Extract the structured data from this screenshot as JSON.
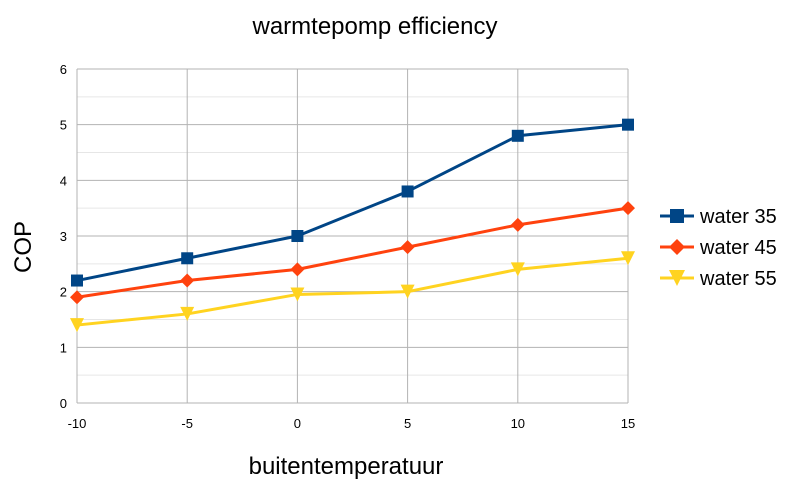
{
  "chart_data": {
    "type": "line",
    "title": "warmtepomp efficiency",
    "xlabel": "buitentemperatuur",
    "ylabel": "COP",
    "x": [
      -10,
      -5,
      0,
      5,
      10,
      15
    ],
    "xlim": [
      -10,
      15
    ],
    "ylim": [
      0,
      6
    ],
    "xticks": [
      "-10",
      "-5",
      "0",
      "5",
      "10",
      "15"
    ],
    "yticks": [
      "0",
      "1",
      "2",
      "3",
      "4",
      "5",
      "6"
    ],
    "grid": true,
    "legend_position": "right",
    "series": [
      {
        "name": "water 35",
        "color": "#004586",
        "marker": "square",
        "values": [
          2.2,
          2.6,
          3.0,
          3.8,
          4.8,
          5.0
        ]
      },
      {
        "name": "water 45",
        "color": "#ff420e",
        "marker": "diamond",
        "values": [
          1.9,
          2.2,
          2.4,
          2.8,
          3.2,
          3.5
        ]
      },
      {
        "name": "water 55",
        "color": "#ffd320",
        "marker": "triangle-down",
        "values": [
          1.4,
          1.6,
          1.95,
          2.0,
          2.4,
          2.6
        ]
      }
    ]
  }
}
